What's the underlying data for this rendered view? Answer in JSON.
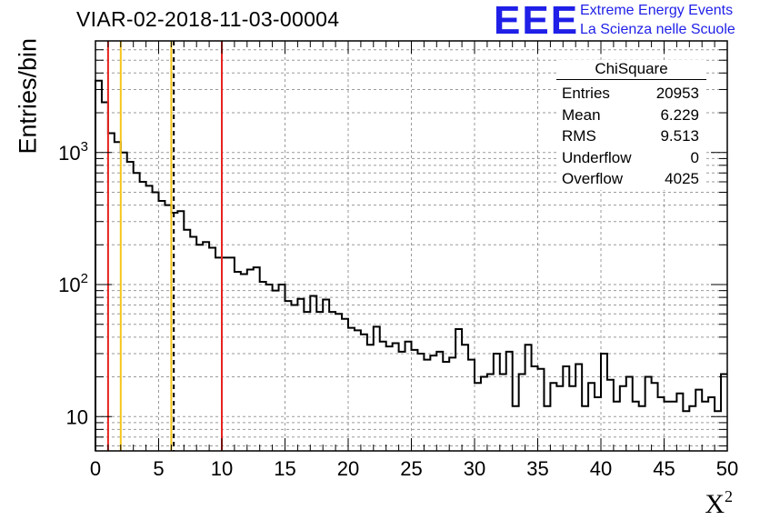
{
  "header": {
    "title": "VIAR-02-2018-11-03-00004",
    "logo_text": "EEE",
    "logo_line1": "Extreme Energy Events",
    "logo_line2": "La Scienza nelle Scuole"
  },
  "stats_box": {
    "title": "ChiSquare",
    "rows": [
      {
        "label": "Entries",
        "value": "20953"
      },
      {
        "label": "Mean",
        "value": "6.229"
      },
      {
        "label": "RMS",
        "value": "9.513"
      },
      {
        "label": "Underflow",
        "value": "0"
      },
      {
        "label": "Overflow",
        "value": "4025"
      }
    ]
  },
  "colors": {
    "histogram": "#000000",
    "red_line": "#e8221e",
    "yellow_line": "#f5c518",
    "black_dashed_line": "#000000",
    "grid": "#9a9a9a"
  },
  "chart_data": {
    "type": "histogram",
    "title": "VIAR-02-2018-11-03-00004",
    "xlabel": "X",
    "xlabel_superscript": "2",
    "ylabel": "Entries/bin",
    "yscale": "log",
    "xlim": [
      0,
      50
    ],
    "ylim": [
      5.5,
      7000
    ],
    "grid": true,
    "x_ticks": [
      "0",
      "5",
      "10",
      "15",
      "20",
      "25",
      "30",
      "35",
      "40",
      "45",
      "50"
    ],
    "y_ticks": [
      {
        "base": "10",
        "exp": "",
        "value": 10
      },
      {
        "base": "10",
        "exp": "2",
        "value": 100
      },
      {
        "base": "10",
        "exp": "3",
        "value": 1000
      }
    ],
    "bin_width": 0.5,
    "bin_values": [
      3500,
      2400,
      1400,
      1200,
      1000,
      850,
      700,
      600,
      560,
      500,
      430,
      400,
      350,
      360,
      260,
      230,
      200,
      210,
      190,
      160,
      160,
      160,
      125,
      120,
      130,
      135,
      105,
      100,
      90,
      100,
      75,
      70,
      78,
      62,
      82,
      62,
      77,
      62,
      60,
      55,
      47,
      45,
      42,
      35,
      48,
      37,
      34,
      36,
      31,
      37,
      32,
      30,
      27,
      29,
      31,
      26,
      28,
      46,
      35,
      27,
      18,
      20,
      21,
      30,
      21,
      31,
      12,
      21,
      35,
      24,
      23,
      12,
      18,
      17,
      24,
      17,
      25,
      12,
      18,
      14,
      30,
      19,
      13,
      17,
      20,
      13,
      12,
      20,
      18,
      14,
      13,
      13,
      15,
      11,
      12,
      16,
      13,
      14,
      11,
      21
    ],
    "vertical_lines": [
      {
        "x": 1,
        "color": "red",
        "style": "solid"
      },
      {
        "x": 2,
        "color": "yellow",
        "style": "solid"
      },
      {
        "x": 6,
        "color": "yellow",
        "style": "solid"
      },
      {
        "x": 6.2,
        "color": "black",
        "style": "dashed"
      },
      {
        "x": 10,
        "color": "red",
        "style": "solid"
      }
    ]
  }
}
